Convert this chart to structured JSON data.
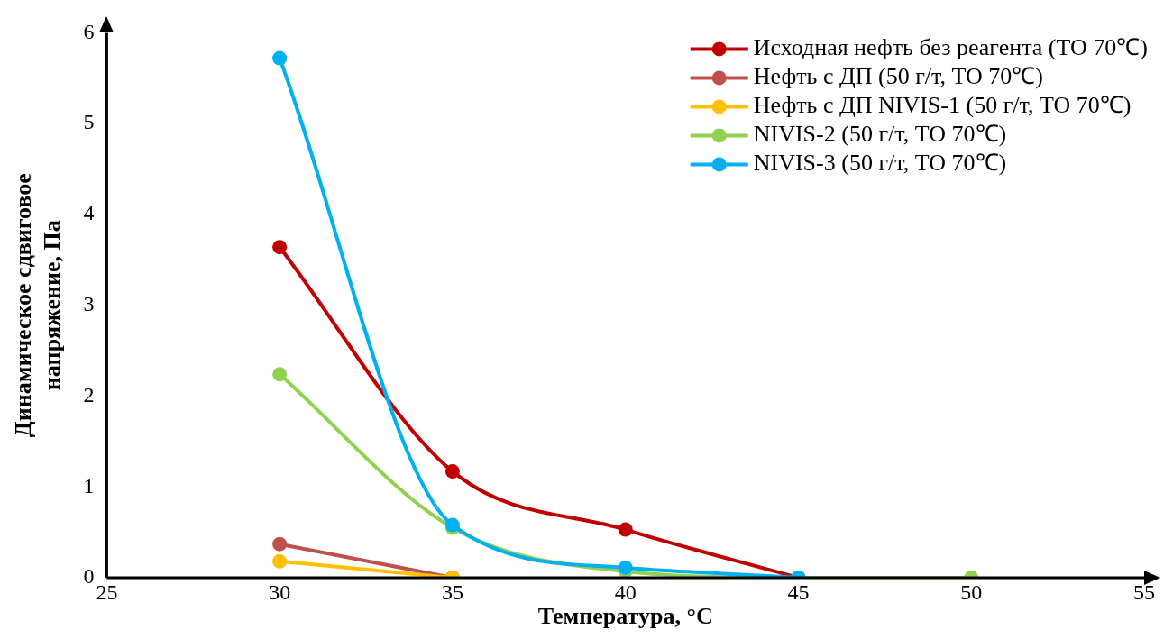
{
  "chart_data": {
    "type": "line",
    "xlabel": "Температура, °С",
    "ylabel": "Динамическое сдвиговое напряжение, Па",
    "xlim": [
      25,
      55
    ],
    "xticks": [
      25,
      30,
      35,
      40,
      45,
      50,
      55
    ],
    "ylim": [
      0,
      6
    ],
    "yticks": [
      0,
      1,
      2,
      3,
      4,
      5,
      6
    ],
    "grid": false,
    "legend": "top right",
    "marker": "circle",
    "line_style": "solid",
    "series": [
      {
        "name": "Исходная нефть без реагента (ТО 70℃)",
        "color": "#c00000",
        "x": [
          30,
          35,
          40,
          45
        ],
        "values": [
          3.64,
          1.17,
          0.53,
          0
        ]
      },
      {
        "name": "Нефть с ДП (50 г/т, ТО 70℃)",
        "color": "#c0504d",
        "x": [
          30,
          35
        ],
        "values": [
          0.37,
          0
        ]
      },
      {
        "name": "Нефть с ДП NIVIS-1 (50 г/т, ТО 70℃)",
        "color": "#ffc000",
        "x": [
          30,
          35
        ],
        "values": [
          0.18,
          0
        ]
      },
      {
        "name": "NIVIS-2 (50 г/т, ТО 70℃)",
        "color": "#92d050",
        "x": [
          30,
          35,
          40,
          45,
          50
        ],
        "values": [
          2.24,
          0.55,
          0.07,
          0,
          0
        ]
      },
      {
        "name": "NIVIS-3 (50 г/т, ТО 70℃)",
        "color": "#00b0f0",
        "x": [
          30,
          35,
          40,
          45
        ],
        "values": [
          5.72,
          0.58,
          0.11,
          0
        ]
      }
    ]
  }
}
